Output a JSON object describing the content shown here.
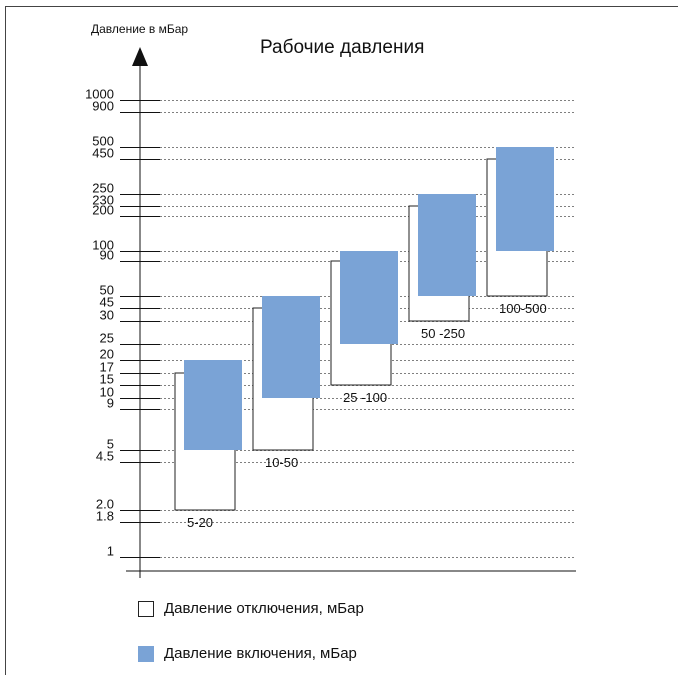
{
  "chart_data": {
    "type": "range-bar",
    "title": "Рабочие давления",
    "ylabel": "Давление в мБар",
    "yscale": "log",
    "yticks": [
      "1000",
      "900",
      "500",
      "450",
      "250",
      "230",
      "200",
      "100",
      "90",
      "50",
      "45",
      "30",
      "25",
      "20",
      "17",
      "15",
      "10",
      "9",
      "5",
      "4.5",
      "2.0",
      "1.8",
      "1"
    ],
    "tick_values": [
      1000,
      900,
      500,
      450,
      250,
      230,
      200,
      100,
      90,
      50,
      45,
      30,
      25,
      20,
      17,
      15,
      10,
      9,
      5,
      4.5,
      2.0,
      1.8,
      1
    ],
    "series": [
      {
        "name": "Давление отключения, мБар",
        "key": "off",
        "color": "#ffffff"
      },
      {
        "name": "Давление включения, мБар",
        "key": "on",
        "color": "#7aa3d6"
      }
    ],
    "ranges": [
      {
        "label": "5-20",
        "off": [
          2.0,
          17
        ],
        "on": [
          5,
          20
        ]
      },
      {
        "label": "10-50",
        "off": [
          5,
          45
        ],
        "on": [
          10,
          50
        ]
      },
      {
        "label": "25 -100",
        "off": [
          15,
          90
        ],
        "on": [
          25,
          100
        ]
      },
      {
        "label": "50 -250",
        "off": [
          30,
          230
        ],
        "on": [
          50,
          250
        ]
      },
      {
        "label": "100-500",
        "off": [
          50,
          450
        ],
        "on": [
          100,
          500
        ]
      }
    ],
    "grid": true
  }
}
